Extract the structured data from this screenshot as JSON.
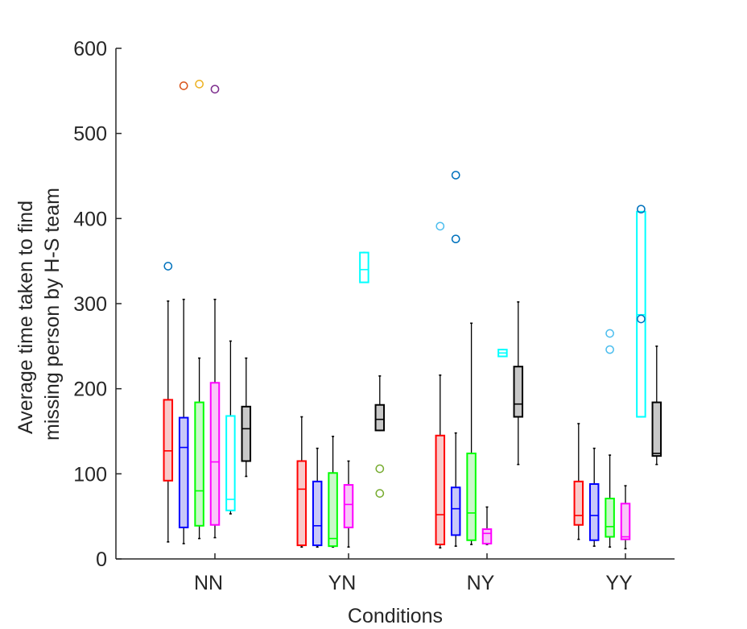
{
  "chart_data": {
    "type": "box",
    "xlabel": "Conditions",
    "ylabel": [
      "Average time taken to find",
      "missing person by H-S team"
    ],
    "ylim": [
      0,
      600
    ],
    "yticks": [
      0,
      100,
      200,
      300,
      400,
      500,
      600
    ],
    "categories": [
      "NN",
      "YN",
      "NY",
      "YY"
    ],
    "grid": false,
    "series_colors": [
      "#ff0000",
      "#0000ff",
      "#00ff00",
      "#ff00ff",
      "#00ffff",
      "#000000"
    ],
    "series_fills": [
      "#f9caca",
      "#c8c8f8",
      "#cbf8cb",
      "#f8c6f8",
      "#ffffff",
      "#c8c8c8"
    ],
    "outlier_colors": [
      "#d95319",
      "#edb120",
      "#7e2f8e",
      "#0072bd",
      "#77ac30",
      "#4dbeee"
    ],
    "groups": [
      {
        "category": "NN",
        "boxes": [
          {
            "q1": 92,
            "median": 127,
            "q3": 187,
            "lo": 20,
            "hi": 303,
            "outliers": [
              {
                "y": 344,
                "color": "#0072bd"
              }
            ]
          },
          {
            "q1": 37,
            "median": 131,
            "q3": 166,
            "lo": 18,
            "hi": 305,
            "outliers": [
              {
                "y": 556,
                "color": "#d95319"
              }
            ]
          },
          {
            "q1": 39,
            "median": 80,
            "q3": 184,
            "lo": 24,
            "hi": 236,
            "outliers": [
              {
                "y": 558,
                "color": "#edb120"
              }
            ]
          },
          {
            "q1": 40,
            "median": 114,
            "q3": 207,
            "lo": 25,
            "hi": 305,
            "outliers": [
              {
                "y": 552,
                "color": "#7e2f8e"
              }
            ]
          },
          {
            "q1": 57,
            "median": 70,
            "q3": 168,
            "lo": 53,
            "hi": 256,
            "outliers": []
          },
          {
            "q1": 115,
            "median": 153,
            "q3": 179,
            "lo": 97,
            "hi": 236,
            "outliers": []
          }
        ]
      },
      {
        "category": "YN",
        "boxes": [
          {
            "q1": 16,
            "median": 82,
            "q3": 115,
            "lo": 14,
            "hi": 167,
            "outliers": []
          },
          {
            "q1": 16,
            "median": 39,
            "q3": 91,
            "lo": 14,
            "hi": 130,
            "outliers": []
          },
          {
            "q1": 15,
            "median": 24,
            "q3": 101,
            "lo": 14,
            "hi": 144,
            "outliers": []
          },
          {
            "q1": 37,
            "median": 64,
            "q3": 87,
            "lo": 14,
            "hi": 115,
            "outliers": []
          },
          {
            "q1": 325,
            "median": 340,
            "q3": 360,
            "lo": 325,
            "hi": 360,
            "outliers": []
          },
          {
            "q1": 151,
            "median": 164,
            "q3": 181,
            "lo": 151,
            "hi": 215,
            "outliers": [
              {
                "y": 106,
                "color": "#77ac30"
              },
              {
                "y": 77,
                "color": "#77ac30"
              }
            ]
          }
        ]
      },
      {
        "category": "NY",
        "boxes": [
          {
            "q1": 17,
            "median": 52,
            "q3": 145,
            "lo": 13,
            "hi": 216,
            "outliers": [
              {
                "y": 391,
                "color": "#4dbeee"
              }
            ]
          },
          {
            "q1": 28,
            "median": 59,
            "q3": 84,
            "lo": 15,
            "hi": 148,
            "outliers": [
              {
                "y": 451,
                "color": "#0072bd"
              },
              {
                "y": 376,
                "color": "#0072bd"
              }
            ]
          },
          {
            "q1": 22,
            "median": 54,
            "q3": 124,
            "lo": 17,
            "hi": 277,
            "outliers": []
          },
          {
            "q1": 18,
            "median": 30,
            "q3": 35,
            "lo": 17,
            "hi": 61,
            "outliers": []
          },
          {
            "q1": 238,
            "median": 242,
            "q3": 246,
            "lo": 238,
            "hi": 246,
            "outliers": []
          },
          {
            "q1": 167,
            "median": 182,
            "q3": 226,
            "lo": 111,
            "hi": 302,
            "outliers": []
          }
        ]
      },
      {
        "category": "YY",
        "boxes": [
          {
            "q1": 40,
            "median": 51,
            "q3": 91,
            "lo": 23,
            "hi": 159,
            "outliers": []
          },
          {
            "q1": 22,
            "median": 51,
            "q3": 88,
            "lo": 15,
            "hi": 130,
            "outliers": []
          },
          {
            "q1": 26,
            "median": 38,
            "q3": 71,
            "lo": 14,
            "hi": 122,
            "outliers": [
              {
                "y": 265,
                "color": "#4dbeee"
              },
              {
                "y": 246,
                "color": "#4dbeee"
              }
            ]
          },
          {
            "q1": 23,
            "median": 26,
            "q3": 65,
            "lo": 12,
            "hi": 86,
            "outliers": []
          },
          {
            "q1": 167,
            "median": 287,
            "q3": 408,
            "lo": 167,
            "hi": 408,
            "outliers": [
              {
                "y": 411,
                "color": "#0072bd"
              },
              {
                "y": 282,
                "color": "#0072bd"
              }
            ]
          },
          {
            "q1": 121,
            "median": 124,
            "q3": 184,
            "lo": 111,
            "hi": 250,
            "outliers": []
          }
        ]
      }
    ]
  }
}
